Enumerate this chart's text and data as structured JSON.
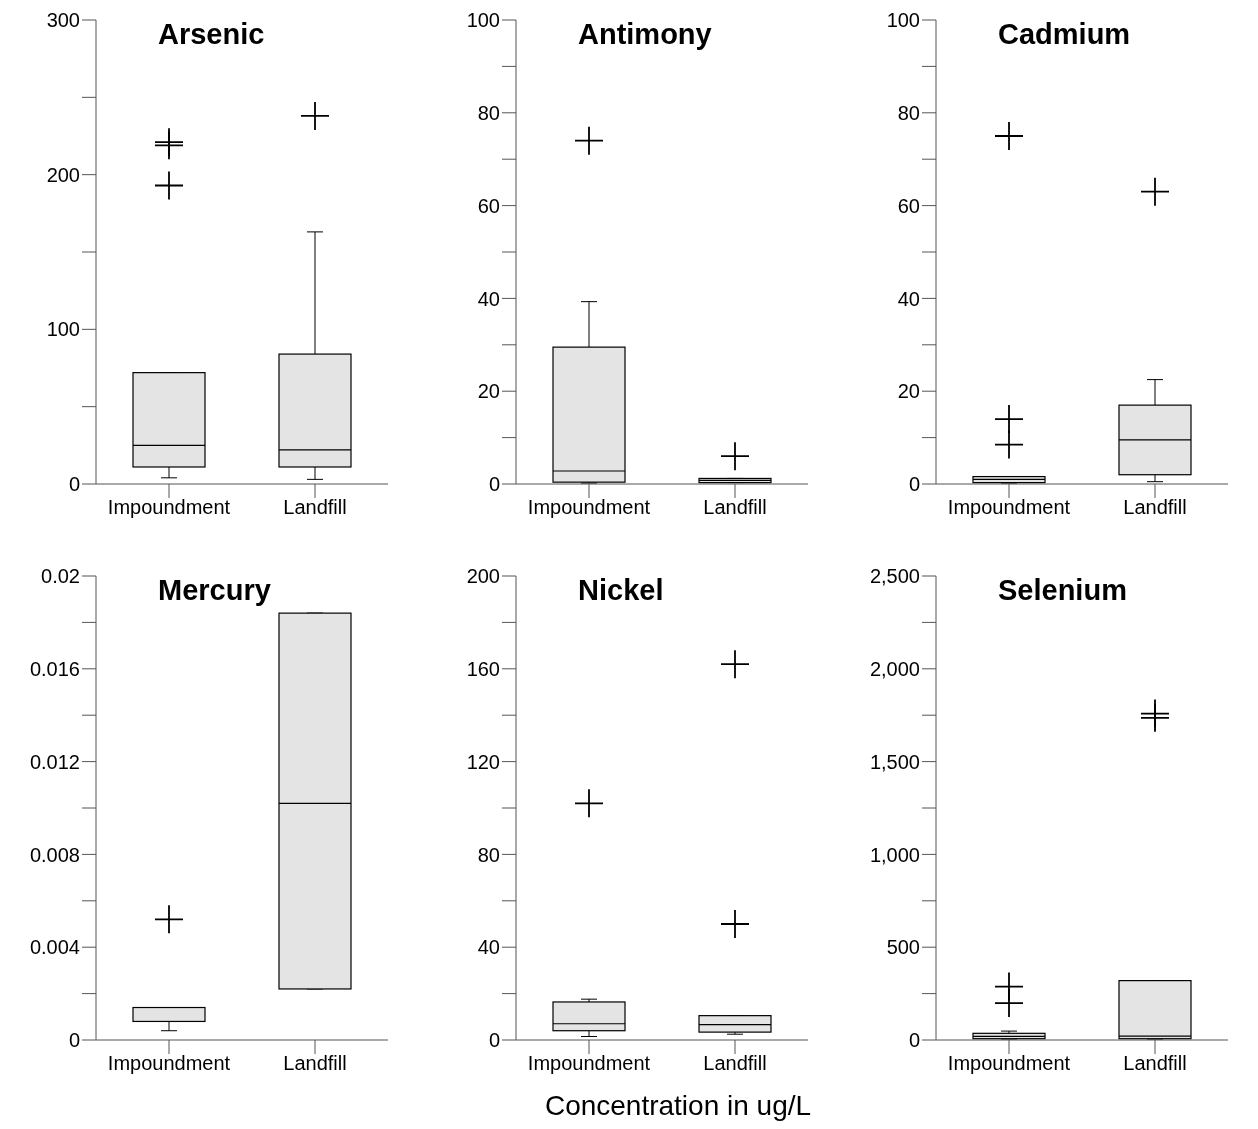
{
  "chart_data": [
    {
      "type": "box",
      "title": "Arsenic",
      "categories": [
        "Impoundment",
        "Landfill"
      ],
      "color": "#e4e4e4",
      "marker": "cross",
      "ylim": [
        0,
        300
      ],
      "yticks": [
        0,
        {
          "value": 50,
          "label": null
        },
        100,
        {
          "value": 150,
          "label": null
        },
        200,
        {
          "value": 250,
          "label": null
        },
        300
      ],
      "boxes": [
        {
          "low": 4,
          "q1": 11,
          "median": 25,
          "q3": 72,
          "high": 72,
          "outliers": [
            221,
            219,
            193
          ]
        },
        {
          "low": 3,
          "q1": 11,
          "median": 22,
          "q3": 84,
          "high": 163,
          "outliers": [
            238
          ]
        }
      ]
    },
    {
      "type": "box",
      "title": "Antimony",
      "categories": [
        "Impoundment",
        "Landfill"
      ],
      "color": "#e4e4e4",
      "marker": "cross",
      "ylim": [
        0,
        100
      ],
      "yticks": [
        0,
        {
          "value": 10,
          "label": null
        },
        20,
        {
          "value": 30,
          "label": null
        },
        40,
        {
          "value": 50,
          "label": null
        },
        60,
        {
          "value": 70,
          "label": null
        },
        80,
        {
          "value": 90,
          "label": null
        },
        100
      ],
      "boxes": [
        {
          "low": 0.2,
          "q1": 0.4,
          "median": 2.8,
          "q3": 29.5,
          "high": 39.3,
          "outliers": [
            74
          ]
        },
        {
          "low": 0.3,
          "q1": 0.3,
          "median": 0.8,
          "q3": 1.2,
          "high": 1.2,
          "outliers": [
            6
          ]
        }
      ]
    },
    {
      "type": "box",
      "title": "Cadmium",
      "categories": [
        "Impoundment",
        "Landfill"
      ],
      "color": "#e4e4e4",
      "marker": "cross",
      "ylim": [
        0,
        100
      ],
      "yticks": [
        0,
        {
          "value": 10,
          "label": null
        },
        20,
        {
          "value": 30,
          "label": null
        },
        40,
        {
          "value": 50,
          "label": null
        },
        60,
        {
          "value": 70,
          "label": null
        },
        80,
        {
          "value": 90,
          "label": null
        },
        100
      ],
      "boxes": [
        {
          "low": 0.2,
          "q1": 0.3,
          "median": 1,
          "q3": 1.6,
          "high": 1.6,
          "outliers": [
            75,
            14,
            8.5
          ]
        },
        {
          "low": 0.5,
          "q1": 2,
          "median": 9.5,
          "q3": 17,
          "high": 22.5,
          "outliers": [
            63
          ]
        }
      ]
    },
    {
      "type": "box",
      "title": "Mercury",
      "categories": [
        "Impoundment",
        "Landfill"
      ],
      "color": "#e4e4e4",
      "marker": "cross",
      "ylim": [
        0,
        0.02
      ],
      "yticks": [
        0,
        {
          "value": 0.002,
          "label": null
        },
        0.004,
        {
          "value": 0.006,
          "label": null
        },
        0.008,
        {
          "value": 0.01,
          "label": null
        },
        0.012,
        {
          "value": 0.014,
          "label": null
        },
        0.016,
        {
          "value": 0.018,
          "label": null
        },
        0.02
      ],
      "boxes": [
        {
          "low": 0.0004,
          "q1": 0.0008,
          "median": 0.0014,
          "q3": 0.0014,
          "high": 0.0014,
          "outliers": [
            0.0052
          ]
        },
        {
          "low": 0.0022,
          "q1": 0.0022,
          "median": 0.0102,
          "q3": 0.0184,
          "high": 0.0184
        }
      ]
    },
    {
      "type": "box",
      "title": "Nickel",
      "xlabel": "Concentration in ug/L",
      "categories": [
        "Impoundment",
        "Landfill"
      ],
      "color": "#e4e4e4",
      "marker": "cross",
      "ylim": [
        0,
        200
      ],
      "yticks": [
        0,
        {
          "value": 20,
          "label": null
        },
        40,
        {
          "value": 60,
          "label": null
        },
        80,
        {
          "value": 100,
          "label": null
        },
        120,
        {
          "value": 140,
          "label": null
        },
        160,
        {
          "value": 180,
          "label": null
        },
        200
      ],
      "boxes": [
        {
          "low": 1.5,
          "q1": 4,
          "median": 7,
          "q3": 16.4,
          "high": 17.6,
          "outliers": [
            102
          ]
        },
        {
          "low": 2.5,
          "q1": 3.4,
          "median": 6.6,
          "q3": 10.5,
          "high": 10.5,
          "outliers": [
            162,
            50
          ]
        }
      ]
    },
    {
      "type": "box",
      "title": "Selenium",
      "categories": [
        "Impoundment",
        "Landfill"
      ],
      "color": "#e4e4e4",
      "marker": "cross",
      "ylim": [
        0,
        2500
      ],
      "yticks": [
        0,
        {
          "value": 250,
          "label": null
        },
        500,
        {
          "value": 750,
          "label": null
        },
        {
          "value": 1000,
          "label": "1,000"
        },
        {
          "value": 1250,
          "label": null
        },
        {
          "value": 1500,
          "label": "1,500"
        },
        {
          "value": 1750,
          "label": null
        },
        {
          "value": 2000,
          "label": "2,000"
        },
        {
          "value": 2250,
          "label": null
        },
        {
          "value": 2500,
          "label": "2,500"
        }
      ],
      "boxes": [
        {
          "low": 5,
          "q1": 7,
          "median": 19,
          "q3": 36,
          "high": 48,
          "outliers": [
            288,
            199
          ]
        },
        {
          "low": 5,
          "q1": 7,
          "median": 21,
          "q3": 320,
          "high": 320,
          "outliers": [
            1759,
            1736
          ]
        }
      ]
    }
  ]
}
